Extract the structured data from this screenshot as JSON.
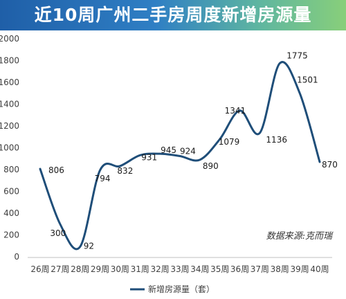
{
  "title": "近10周广州二手房周度新增房源量",
  "source_note": "数据来源:克而瑞",
  "colors": {
    "line": "#1f4e79",
    "axis": "#bfbfbf",
    "banner_start": "#1f5fa8",
    "banner_end": "#88cf7a"
  },
  "chart_data": {
    "type": "line",
    "title": "近10周广州二手房周度新增房源量",
    "categories": [
      "26周",
      "27周",
      "28周",
      "29周",
      "30周",
      "31周",
      "32周",
      "33周",
      "34周",
      "35周",
      "36周",
      "37周",
      "38周",
      "39周",
      "40周"
    ],
    "series": [
      {
        "name": "新增房源量（套）",
        "values": [
          806,
          300,
          92,
          794,
          832,
          931,
          945,
          924,
          890,
          1079,
          1341,
          1136,
          1775,
          1501,
          870
        ],
        "labels": [
          "806",
          "300",
          "92",
          "794",
          "832",
          "931",
          "945",
          "924",
          "890",
          "1079",
          "1341",
          "1136",
          "1775",
          "1501",
          "870"
        ]
      }
    ],
    "ylim": [
      0,
      2000
    ],
    "yticks": [
      "0",
      "200",
      "400",
      "600",
      "800",
      "1000",
      "1200",
      "1400",
      "1600",
      "1800",
      "2000"
    ],
    "smooth": true,
    "grid": false,
    "legend_position": "bottom"
  }
}
